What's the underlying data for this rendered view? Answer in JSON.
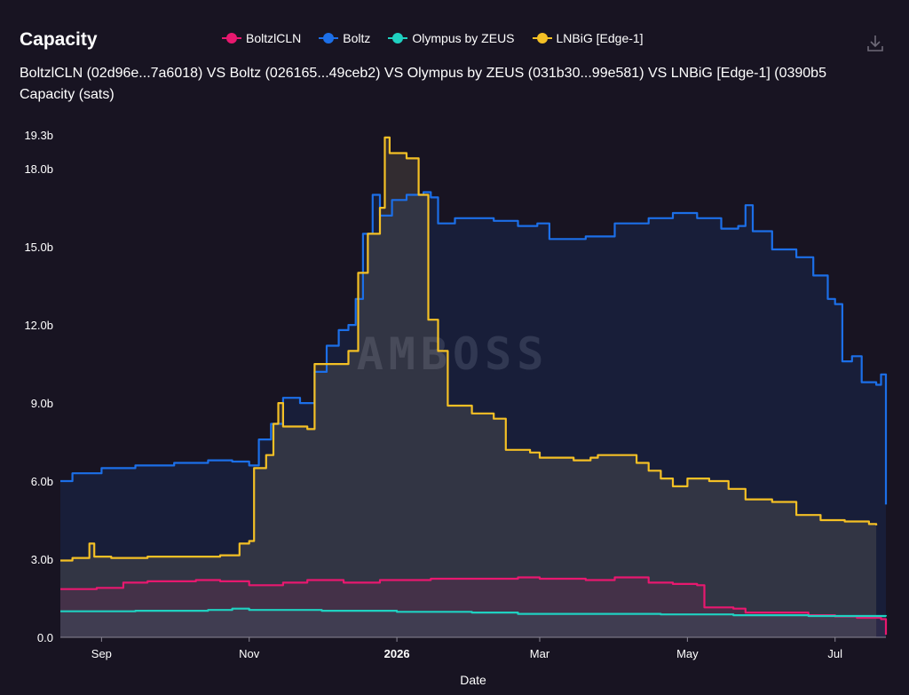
{
  "header": {
    "title": "Capacity",
    "subtitle": "BoltzlCLN (02d96e...7a6018) VS Boltz (026165...49ceb2) VS Olympus by ZEUS (031b30...99e581) VS LNBiG [Edge-1] (0390b5",
    "download_icon": "download-icon"
  },
  "chart_data": {
    "type": "area",
    "title": "Capacity",
    "ylabel": "Capacity (sats)",
    "xlabel": "Date",
    "ylim": [
      0,
      19.3
    ],
    "y_unit": "b (billion sats)",
    "y_ticks": [
      "0.0",
      "3.0b",
      "6.0b",
      "9.0b",
      "12.0b",
      "15.0b",
      "18.0b",
      "19.3b"
    ],
    "y_tick_values": [
      0,
      3,
      6,
      9,
      12,
      15,
      18,
      19.3
    ],
    "x_ticks": [
      {
        "label": "Sep",
        "date": "2025-09-01",
        "bold": false
      },
      {
        "label": "Nov",
        "date": "2025-11-01",
        "bold": false
      },
      {
        "label": "2026",
        "date": "2026-01-01",
        "bold": true
      },
      {
        "label": "Mar",
        "date": "2026-03-01",
        "bold": false
      },
      {
        "label": "May",
        "date": "2026-05-01",
        "bold": false
      },
      {
        "label": "Jul",
        "date": "2026-07-01",
        "bold": false
      }
    ],
    "xlim": [
      "2025-08-15",
      "2026-07-22"
    ],
    "watermark": "AMBOSS",
    "legend_position": "top",
    "grid": false,
    "series": [
      {
        "name": "BoltzlCLN",
        "color": "#e8186f",
        "fill": "rgba(232,24,111,0.10)",
        "points": [
          [
            "2025-08-15",
            1.85
          ],
          [
            "2025-08-30",
            1.9
          ],
          [
            "2025-09-10",
            2.1
          ],
          [
            "2025-09-20",
            2.15
          ],
          [
            "2025-10-10",
            2.2
          ],
          [
            "2025-10-20",
            2.15
          ],
          [
            "2025-11-01",
            2.0
          ],
          [
            "2025-11-15",
            2.1
          ],
          [
            "2025-11-25",
            2.2
          ],
          [
            "2025-12-10",
            2.1
          ],
          [
            "2025-12-25",
            2.2
          ],
          [
            "2026-01-15",
            2.25
          ],
          [
            "2026-02-01",
            2.25
          ],
          [
            "2026-02-20",
            2.3
          ],
          [
            "2026-03-01",
            2.25
          ],
          [
            "2026-03-20",
            2.2
          ],
          [
            "2026-04-01",
            2.3
          ],
          [
            "2026-04-15",
            2.1
          ],
          [
            "2026-04-25",
            2.05
          ],
          [
            "2026-05-05",
            2.0
          ],
          [
            "2026-05-08",
            1.15
          ],
          [
            "2026-05-20",
            1.1
          ],
          [
            "2026-05-25",
            0.95
          ],
          [
            "2026-06-10",
            0.95
          ],
          [
            "2026-06-20",
            0.85
          ],
          [
            "2026-07-01",
            0.8
          ],
          [
            "2026-07-10",
            0.75
          ],
          [
            "2026-07-20",
            0.7
          ],
          [
            "2026-07-22",
            0.1
          ]
        ]
      },
      {
        "name": "Boltz",
        "color": "#1c6fe8",
        "fill": "rgba(28,111,232,0.12)",
        "points": [
          [
            "2025-08-15",
            6.0
          ],
          [
            "2025-08-20",
            6.3
          ],
          [
            "2025-09-01",
            6.5
          ],
          [
            "2025-09-15",
            6.6
          ],
          [
            "2025-10-01",
            6.7
          ],
          [
            "2025-10-15",
            6.8
          ],
          [
            "2025-10-25",
            6.75
          ],
          [
            "2025-11-01",
            6.6
          ],
          [
            "2025-11-05",
            7.6
          ],
          [
            "2025-11-10",
            8.2
          ],
          [
            "2025-11-15",
            9.2
          ],
          [
            "2025-11-22",
            9.0
          ],
          [
            "2025-11-28",
            10.2
          ],
          [
            "2025-12-03",
            11.2
          ],
          [
            "2025-12-08",
            11.8
          ],
          [
            "2025-12-12",
            12.0
          ],
          [
            "2025-12-15",
            13.0
          ],
          [
            "2025-12-18",
            15.5
          ],
          [
            "2025-12-22",
            17.0
          ],
          [
            "2025-12-25",
            16.2
          ],
          [
            "2025-12-30",
            16.8
          ],
          [
            "2026-01-05",
            17.0
          ],
          [
            "2026-01-12",
            17.1
          ],
          [
            "2026-01-15",
            16.9
          ],
          [
            "2026-01-18",
            15.9
          ],
          [
            "2026-01-25",
            16.1
          ],
          [
            "2026-02-10",
            16.0
          ],
          [
            "2026-02-20",
            15.8
          ],
          [
            "2026-02-28",
            15.9
          ],
          [
            "2026-03-05",
            15.3
          ],
          [
            "2026-03-20",
            15.4
          ],
          [
            "2026-04-01",
            15.9
          ],
          [
            "2026-04-15",
            16.1
          ],
          [
            "2026-04-25",
            16.3
          ],
          [
            "2026-05-05",
            16.1
          ],
          [
            "2026-05-15",
            15.7
          ],
          [
            "2026-05-22",
            15.8
          ],
          [
            "2026-05-25",
            16.6
          ],
          [
            "2026-05-28",
            15.6
          ],
          [
            "2026-06-05",
            14.9
          ],
          [
            "2026-06-15",
            14.6
          ],
          [
            "2026-06-22",
            13.9
          ],
          [
            "2026-06-28",
            13.0
          ],
          [
            "2026-07-01",
            12.8
          ],
          [
            "2026-07-04",
            10.6
          ],
          [
            "2026-07-08",
            10.8
          ],
          [
            "2026-07-12",
            9.8
          ],
          [
            "2026-07-18",
            9.7
          ],
          [
            "2026-07-20",
            10.1
          ],
          [
            "2026-07-22",
            5.1
          ]
        ]
      },
      {
        "name": "Olympus by ZEUS",
        "color": "#1fd1c1",
        "fill": "rgba(31,209,193,0.08)",
        "points": [
          [
            "2025-08-15",
            1.0
          ],
          [
            "2025-09-15",
            1.02
          ],
          [
            "2025-10-15",
            1.05
          ],
          [
            "2025-10-25",
            1.1
          ],
          [
            "2025-11-01",
            1.05
          ],
          [
            "2025-12-01",
            1.02
          ],
          [
            "2026-01-01",
            0.98
          ],
          [
            "2026-02-01",
            0.95
          ],
          [
            "2026-02-20",
            0.9
          ],
          [
            "2026-03-20",
            0.9
          ],
          [
            "2026-04-20",
            0.88
          ],
          [
            "2026-05-20",
            0.85
          ],
          [
            "2026-06-20",
            0.82
          ],
          [
            "2026-07-22",
            0.8
          ]
        ]
      },
      {
        "name": "LNBiG [Edge-1]",
        "color": "#f4c025",
        "fill": "rgba(230,210,150,0.13)",
        "points": [
          [
            "2025-08-15",
            2.95
          ],
          [
            "2025-08-20",
            3.05
          ],
          [
            "2025-08-27",
            3.6
          ],
          [
            "2025-08-29",
            3.1
          ],
          [
            "2025-09-05",
            3.05
          ],
          [
            "2025-09-20",
            3.1
          ],
          [
            "2025-10-01",
            3.1
          ],
          [
            "2025-10-20",
            3.15
          ],
          [
            "2025-10-28",
            3.6
          ],
          [
            "2025-11-01",
            3.7
          ],
          [
            "2025-11-03",
            6.5
          ],
          [
            "2025-11-08",
            7.0
          ],
          [
            "2025-11-11",
            8.2
          ],
          [
            "2025-11-13",
            9.0
          ],
          [
            "2025-11-15",
            8.1
          ],
          [
            "2025-11-25",
            8.0
          ],
          [
            "2025-11-28",
            10.5
          ],
          [
            "2025-12-08",
            10.5
          ],
          [
            "2025-12-12",
            11.0
          ],
          [
            "2025-12-16",
            14.0
          ],
          [
            "2025-12-20",
            15.5
          ],
          [
            "2025-12-25",
            16.5
          ],
          [
            "2025-12-27",
            19.2
          ],
          [
            "2025-12-29",
            18.6
          ],
          [
            "2026-01-05",
            18.4
          ],
          [
            "2026-01-10",
            17.0
          ],
          [
            "2026-01-14",
            12.2
          ],
          [
            "2026-01-18",
            11.0
          ],
          [
            "2026-01-22",
            8.9
          ],
          [
            "2026-02-01",
            8.6
          ],
          [
            "2026-02-10",
            8.4
          ],
          [
            "2026-02-15",
            7.2
          ],
          [
            "2026-02-25",
            7.1
          ],
          [
            "2026-03-01",
            6.9
          ],
          [
            "2026-03-15",
            6.8
          ],
          [
            "2026-03-22",
            6.9
          ],
          [
            "2026-03-25",
            7.0
          ],
          [
            "2026-04-01",
            7.0
          ],
          [
            "2026-04-10",
            6.7
          ],
          [
            "2026-04-15",
            6.4
          ],
          [
            "2026-04-20",
            6.1
          ],
          [
            "2026-04-25",
            5.8
          ],
          [
            "2026-05-01",
            6.1
          ],
          [
            "2026-05-10",
            6.0
          ],
          [
            "2026-05-18",
            5.7
          ],
          [
            "2026-05-25",
            5.3
          ],
          [
            "2026-06-05",
            5.2
          ],
          [
            "2026-06-15",
            4.7
          ],
          [
            "2026-06-25",
            4.5
          ],
          [
            "2026-07-05",
            4.45
          ],
          [
            "2026-07-15",
            4.35
          ],
          [
            "2026-07-18",
            4.3
          ]
        ]
      }
    ]
  }
}
